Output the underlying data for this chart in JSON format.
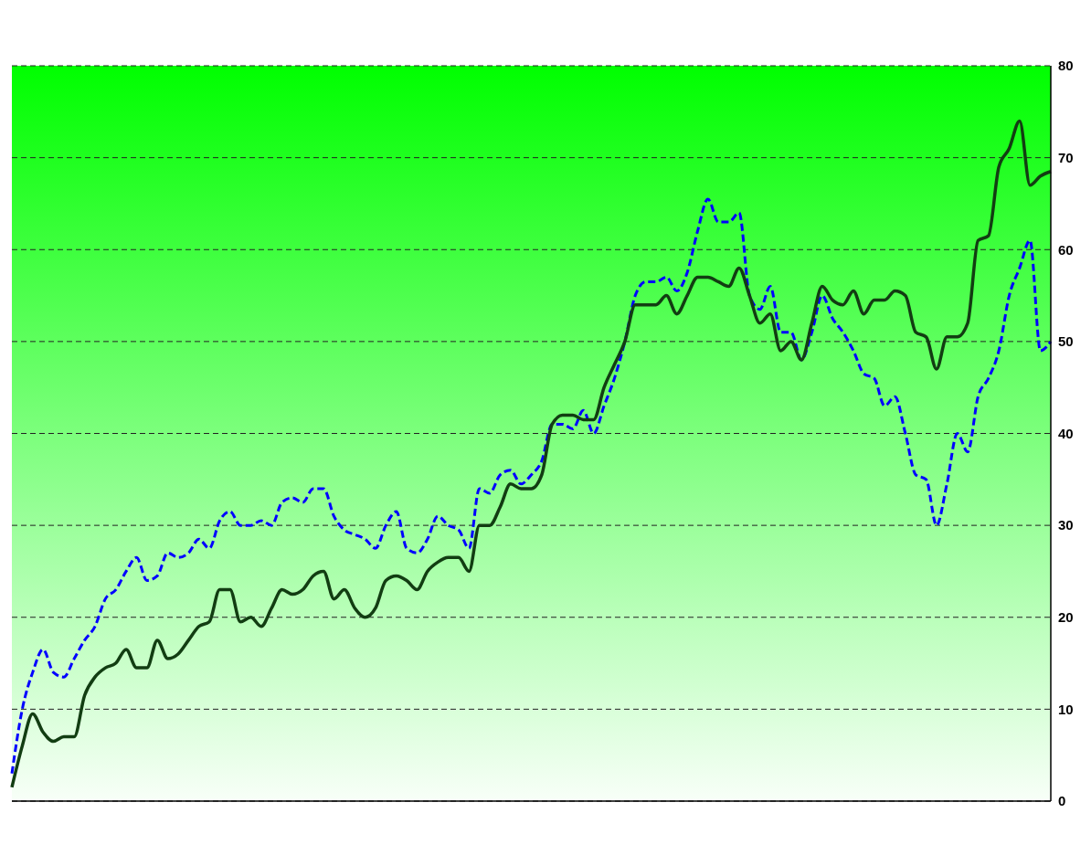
{
  "chart_data": {
    "type": "line",
    "categories": [
      null,
      null,
      null,
      null,
      null,
      null,
      null,
      null,
      null,
      null,
      null,
      null,
      null,
      null,
      null,
      null,
      null,
      null,
      null,
      null,
      null,
      null,
      null,
      null,
      null,
      null,
      null,
      null,
      null,
      null,
      null,
      null,
      null,
      null,
      null,
      null,
      null,
      null,
      null,
      null,
      null,
      null,
      null,
      null,
      null,
      null,
      null,
      null,
      null,
      null,
      null,
      null,
      null,
      null,
      null,
      null,
      null,
      null,
      null,
      null,
      null,
      null,
      null,
      null,
      null,
      null,
      null,
      null,
      null,
      null,
      null,
      null,
      null,
      null,
      null,
      null,
      null,
      null,
      null,
      null,
      null,
      null,
      null,
      null,
      null,
      null,
      null,
      null,
      null,
      null,
      null,
      null,
      null,
      null,
      null,
      null,
      null,
      null,
      null,
      null,
      null
    ],
    "series": [
      {
        "color": "#0000ff",
        "line_style": "dashed",
        "values": [
          3,
          10,
          14,
          16.5,
          14,
          13.5,
          15.5,
          17.5,
          19,
          22,
          23,
          25,
          26.5,
          24,
          24.5,
          27,
          26.5,
          27,
          28.5,
          27.5,
          30.5,
          31.5,
          30,
          30,
          30.5,
          30,
          32.5,
          33,
          32.5,
          34,
          34,
          31,
          29.5,
          29,
          28.5,
          27.5,
          30,
          31.5,
          27.5,
          27,
          28.5,
          31,
          30,
          29.5,
          27.5,
          34,
          33.5,
          35.5,
          36,
          34.5,
          35.5,
          37,
          41,
          41,
          40.5,
          42.5,
          40,
          43,
          46,
          50,
          55,
          56.5,
          56.5,
          57,
          55.5,
          57.5,
          62,
          65.5,
          63,
          63,
          64,
          55,
          53.5,
          56,
          51,
          51,
          48,
          51,
          55,
          52.5,
          51,
          49,
          46.5,
          46,
          43,
          44,
          40,
          35.5,
          35,
          30,
          34.5,
          40,
          38,
          44,
          46,
          49,
          55,
          58,
          61,
          49,
          50
        ]
      },
      {
        "color": "#123d12",
        "line_style": "solid",
        "values": [
          1.5,
          6,
          9.5,
          7.5,
          6.5,
          7,
          7,
          11.5,
          13.5,
          14.5,
          15,
          16.5,
          14.5,
          14.5,
          17.5,
          15.5,
          16,
          17.5,
          19,
          19.5,
          23,
          23,
          19.5,
          20,
          19,
          21,
          23,
          22.5,
          23,
          24.5,
          25,
          22,
          23,
          21,
          20,
          21,
          24,
          24.5,
          24,
          23,
          25,
          26,
          26.5,
          26.5,
          25,
          30,
          30,
          32,
          34.5,
          34,
          34,
          35.5,
          41,
          42,
          42,
          41.5,
          41.5,
          45,
          47.5,
          50,
          54,
          54,
          54,
          55,
          53,
          55,
          57,
          57,
          56.5,
          56,
          58,
          55,
          52,
          53,
          49,
          50,
          48,
          52,
          56,
          54.5,
          54,
          55.5,
          53,
          54.5,
          54.5,
          55.5,
          55,
          51,
          50.5,
          47,
          50.5,
          50.5,
          52,
          61,
          61.5,
          69,
          71,
          74,
          67,
          68,
          68.5
        ]
      }
    ],
    "ylim": [
      0,
      80
    ],
    "yticks": [
      0,
      10,
      20,
      30,
      40,
      50,
      60,
      70,
      80
    ],
    "grid": "y",
    "legend": false,
    "tick_labels": "y",
    "marker": "none"
  }
}
